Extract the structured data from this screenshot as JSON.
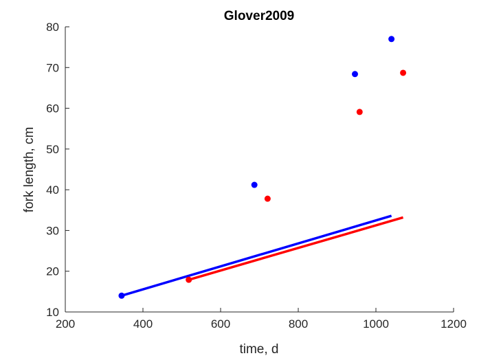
{
  "chart_data": {
    "type": "scatter",
    "title": "Glover2009",
    "xlabel": "time, d",
    "ylabel": "fork length, cm",
    "xlim": [
      200,
      1200
    ],
    "ylim": [
      10,
      80
    ],
    "xticks": [
      200,
      400,
      600,
      800,
      1000,
      1200
    ],
    "yticks": [
      10,
      20,
      30,
      40,
      50,
      60,
      70,
      80
    ],
    "grid": false,
    "legend": "none",
    "series": [
      {
        "color": "#0000ff",
        "points": [
          {
            "x": 345,
            "y": 14.0
          },
          {
            "x": 687,
            "y": 41.2
          },
          {
            "x": 946,
            "y": 68.4
          },
          {
            "x": 1040,
            "y": 77.0
          }
        ],
        "line": [
          {
            "x": 345,
            "y": 14.0
          },
          {
            "x": 1040,
            "y": 33.6
          }
        ]
      },
      {
        "color": "#ff0000",
        "points": [
          {
            "x": 518,
            "y": 17.9
          },
          {
            "x": 721,
            "y": 37.8
          },
          {
            "x": 958,
            "y": 59.1
          },
          {
            "x": 1070,
            "y": 68.7
          }
        ],
        "line": [
          {
            "x": 518,
            "y": 17.9
          },
          {
            "x": 1070,
            "y": 33.2
          }
        ]
      }
    ]
  }
}
